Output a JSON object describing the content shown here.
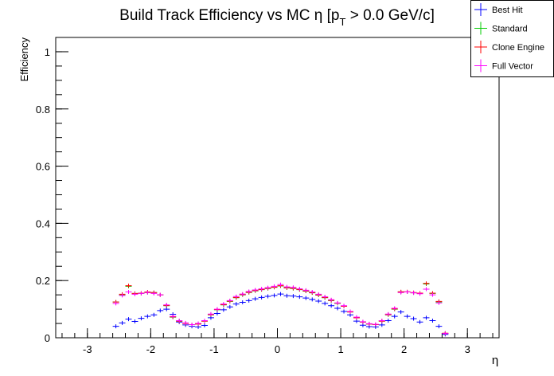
{
  "chart_data": {
    "type": "scatter",
    "title_main": "Build Track Efficiency vs MC η [p",
    "title_sub": "T",
    "title_tail": " > 0.0 GeV/c]",
    "xlabel": "η",
    "ylabel": "Efficiency",
    "xlim": [
      -3.5,
      3.5
    ],
    "ylim": [
      0,
      1.05
    ],
    "x_bin_width": 0.1,
    "x_ticks": [
      -3,
      -2,
      -1,
      0,
      1,
      2,
      3
    ],
    "x_tick_labels": [
      "-3",
      "-2",
      "-1",
      "0",
      "1",
      "2",
      "3"
    ],
    "y_ticks": [
      0,
      0.2,
      0.4,
      0.6,
      0.8,
      1
    ],
    "y_tick_labels": [
      "0",
      "0.2",
      "0.4",
      "0.6",
      "0.8",
      "1"
    ],
    "grid": false,
    "legend_position": "top-right",
    "series": [
      {
        "name": "Best Hit",
        "color": "#0000ff",
        "x": [
          -2.55,
          -2.45,
          -2.35,
          -2.25,
          -2.15,
          -2.05,
          -1.95,
          -1.85,
          -1.75,
          -1.65,
          -1.55,
          -1.45,
          -1.35,
          -1.25,
          -1.15,
          -1.05,
          -0.95,
          -0.85,
          -0.75,
          -0.65,
          -0.55,
          -0.45,
          -0.35,
          -0.25,
          -0.15,
          -0.05,
          0.05,
          0.15,
          0.25,
          0.35,
          0.45,
          0.55,
          0.65,
          0.75,
          0.85,
          0.95,
          1.05,
          1.15,
          1.25,
          1.35,
          1.45,
          1.55,
          1.65,
          1.75,
          1.85,
          1.95,
          2.05,
          2.15,
          2.25,
          2.35,
          2.45,
          2.55,
          2.65
        ],
        "y": [
          0.04,
          0.052,
          0.065,
          0.057,
          0.068,
          0.075,
          0.08,
          0.095,
          0.1,
          0.082,
          0.055,
          0.045,
          0.04,
          0.038,
          0.043,
          0.07,
          0.085,
          0.098,
          0.108,
          0.118,
          0.124,
          0.13,
          0.136,
          0.141,
          0.145,
          0.148,
          0.153,
          0.147,
          0.146,
          0.143,
          0.139,
          0.134,
          0.128,
          0.12,
          0.112,
          0.103,
          0.092,
          0.08,
          0.058,
          0.044,
          0.039,
          0.038,
          0.045,
          0.06,
          0.075,
          0.09,
          0.075,
          0.067,
          0.055,
          0.07,
          0.06,
          0.04,
          0.012
        ]
      },
      {
        "name": "Standard",
        "color": "#00cc00",
        "x": [
          -2.55,
          -2.45,
          -2.35,
          -2.25,
          -2.15,
          -2.05,
          -1.95,
          -1.85,
          -1.75,
          -1.65,
          -1.55,
          -1.45,
          -1.35,
          -1.25,
          -1.15,
          -1.05,
          -0.95,
          -0.85,
          -0.75,
          -0.65,
          -0.55,
          -0.45,
          -0.35,
          -0.25,
          -0.15,
          -0.05,
          0.05,
          0.15,
          0.25,
          0.35,
          0.45,
          0.55,
          0.65,
          0.75,
          0.85,
          0.95,
          1.05,
          1.15,
          1.25,
          1.35,
          1.45,
          1.55,
          1.65,
          1.75,
          1.85,
          1.95,
          2.05,
          2.15,
          2.25,
          2.35,
          2.45,
          2.55,
          2.65
        ],
        "y": [
          0.125,
          0.15,
          0.18,
          0.155,
          0.155,
          0.158,
          0.158,
          0.15,
          0.112,
          0.072,
          0.058,
          0.05,
          0.046,
          0.048,
          0.058,
          0.08,
          0.098,
          0.115,
          0.127,
          0.14,
          0.15,
          0.158,
          0.164,
          0.168,
          0.172,
          0.176,
          0.181,
          0.174,
          0.172,
          0.168,
          0.163,
          0.157,
          0.149,
          0.14,
          0.13,
          0.12,
          0.11,
          0.09,
          0.07,
          0.055,
          0.048,
          0.046,
          0.058,
          0.08,
          0.1,
          0.16,
          0.16,
          0.157,
          0.155,
          0.188,
          0.155,
          0.125,
          0.015
        ]
      },
      {
        "name": "Clone Engine",
        "color": "#ff0000",
        "x": [
          -2.55,
          -2.45,
          -2.35,
          -2.25,
          -2.15,
          -2.05,
          -1.95,
          -1.85,
          -1.75,
          -1.65,
          -1.55,
          -1.45,
          -1.35,
          -1.25,
          -1.15,
          -1.05,
          -0.95,
          -0.85,
          -0.75,
          -0.65,
          -0.55,
          -0.45,
          -0.35,
          -0.25,
          -0.15,
          -0.05,
          0.05,
          0.15,
          0.25,
          0.35,
          0.45,
          0.55,
          0.65,
          0.75,
          0.85,
          0.95,
          1.05,
          1.15,
          1.25,
          1.35,
          1.45,
          1.55,
          1.65,
          1.75,
          1.85,
          1.95,
          2.05,
          2.15,
          2.25,
          2.35,
          2.45,
          2.55,
          2.65
        ],
        "y": [
          0.125,
          0.152,
          0.182,
          0.155,
          0.156,
          0.16,
          0.158,
          0.15,
          0.113,
          0.073,
          0.058,
          0.05,
          0.046,
          0.048,
          0.058,
          0.081,
          0.099,
          0.116,
          0.128,
          0.141,
          0.151,
          0.159,
          0.165,
          0.169,
          0.173,
          0.177,
          0.182,
          0.175,
          0.173,
          0.169,
          0.164,
          0.158,
          0.15,
          0.141,
          0.131,
          0.121,
          0.11,
          0.09,
          0.07,
          0.055,
          0.048,
          0.046,
          0.058,
          0.081,
          0.101,
          0.161,
          0.161,
          0.158,
          0.156,
          0.19,
          0.156,
          0.127,
          0.016
        ]
      },
      {
        "name": "Full Vector",
        "color": "#ff00ff",
        "x": [
          -2.55,
          -2.45,
          -2.35,
          -2.25,
          -2.15,
          -2.05,
          -1.95,
          -1.85,
          -1.75,
          -1.65,
          -1.55,
          -1.45,
          -1.35,
          -1.25,
          -1.15,
          -1.05,
          -0.95,
          -0.85,
          -0.75,
          -0.65,
          -0.55,
          -0.45,
          -0.35,
          -0.25,
          -0.15,
          -0.05,
          0.05,
          0.15,
          0.25,
          0.35,
          0.45,
          0.55,
          0.65,
          0.75,
          0.85,
          0.95,
          1.05,
          1.15,
          1.25,
          1.35,
          1.45,
          1.55,
          1.65,
          1.75,
          1.85,
          1.95,
          2.05,
          2.15,
          2.25,
          2.35,
          2.45,
          2.55,
          2.65
        ],
        "y": [
          0.12,
          0.148,
          0.16,
          0.152,
          0.155,
          0.158,
          0.155,
          0.15,
          0.115,
          0.075,
          0.06,
          0.052,
          0.046,
          0.05,
          0.06,
          0.083,
          0.1,
          0.118,
          0.13,
          0.144,
          0.153,
          0.162,
          0.167,
          0.171,
          0.175,
          0.18,
          0.186,
          0.178,
          0.176,
          0.171,
          0.166,
          0.16,
          0.152,
          0.143,
          0.133,
          0.122,
          0.112,
          0.092,
          0.072,
          0.056,
          0.049,
          0.047,
          0.06,
          0.083,
          0.103,
          0.158,
          0.16,
          0.157,
          0.154,
          0.17,
          0.15,
          0.122,
          0.015
        ]
      }
    ]
  }
}
